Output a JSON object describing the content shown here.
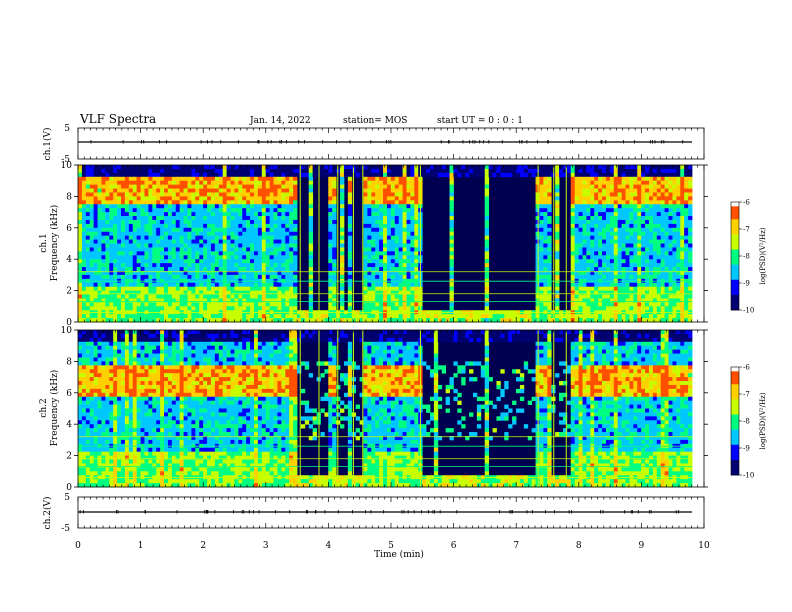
{
  "header": {
    "title": "VLF Spectra",
    "date": "Jan. 14, 2022",
    "station": "station= MOS",
    "start": "start UT =  0 : 0 : 1"
  },
  "chart_data": {
    "type": "heatmap",
    "x_axis": {
      "label": "Time (min)",
      "range": [
        0,
        10
      ],
      "ticks": [
        "0",
        "1",
        "2",
        "3",
        "4",
        "5",
        "6",
        "7",
        "8",
        "9",
        "10"
      ]
    },
    "panels": [
      {
        "name": "ch.1(V)",
        "kind": "line",
        "ylim": [
          -5,
          5
        ],
        "ticks": [
          "5",
          "-5"
        ],
        "level": 0
      },
      {
        "name": "ch.1",
        "kind": "spectrogram",
        "ylabel_top": "ch.1",
        "ylabel": "Frequency (kHz)",
        "ylim": [
          0,
          10
        ],
        "ticks": [
          "0",
          "2",
          "4",
          "6",
          "8",
          "10"
        ],
        "colorbar": {
          "label": "log(PSD)(V²/Hz)",
          "range": [
            -10,
            -6
          ],
          "ticks": [
            "-6",
            "-7",
            "-8",
            "-9",
            "-10"
          ]
        }
      },
      {
        "name": "ch.2",
        "kind": "spectrogram",
        "ylabel_top": "ch.2",
        "ylabel": "Frequency (kHz)",
        "ylim": [
          0,
          10
        ],
        "ticks": [
          "0",
          "2",
          "4",
          "6",
          "8",
          "10"
        ],
        "colorbar": {
          "label": "log(PSD)(V²/Hz)",
          "range": [
            -10,
            -6
          ],
          "ticks": [
            "-6",
            "-7",
            "-8",
            "-9",
            "-10"
          ]
        }
      },
      {
        "name": "ch.2(V)",
        "kind": "line",
        "ylim": [
          -5,
          5
        ],
        "ticks": [
          "5",
          "-5"
        ],
        "level": 0
      }
    ],
    "quiet_intervals_min": [
      [
        3.45,
        3.95
      ],
      [
        4.1,
        4.25
      ],
      [
        4.35,
        4.5
      ],
      [
        5.45,
        7.3
      ],
      [
        7.55,
        7.85
      ]
    ],
    "colormap": [
      "#000070",
      "#0000ff",
      "#00c8ff",
      "#00ff80",
      "#c8ff00",
      "#ffd000",
      "#ff5000",
      "#ff0000",
      "#ffffff"
    ]
  }
}
